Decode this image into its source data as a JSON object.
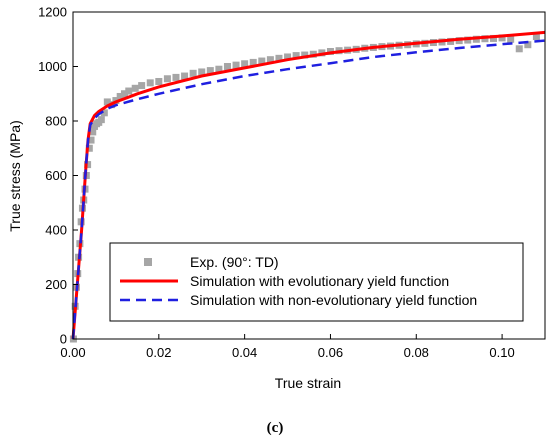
{
  "chart_data": {
    "type": "line",
    "xlabel": "True strain",
    "ylabel": "True stress (MPa)",
    "xlim": [
      0,
      0.11
    ],
    "ylim": [
      0,
      1200
    ],
    "x_ticks": [
      0.0,
      0.02,
      0.04,
      0.06,
      0.08,
      0.1
    ],
    "x_tick_labels": [
      "0.00",
      "0.02",
      "0.04",
      "0.06",
      "0.08",
      "0.10"
    ],
    "y_ticks": [
      0,
      200,
      400,
      600,
      800,
      1000,
      1200
    ],
    "y_tick_labels": [
      "0",
      "200",
      "400",
      "600",
      "800",
      "1000",
      "1200"
    ],
    "grid": false,
    "legend_position": "lower-right",
    "panel_label": "(c)",
    "series": [
      {
        "name": "Exp. (90°: TD)",
        "style": "scatter",
        "color": "#a6a6a6",
        "marker": "square",
        "x": [
          0.0001,
          0.0005,
          0.0008,
          0.0011,
          0.0013,
          0.0016,
          0.0019,
          0.0022,
          0.0025,
          0.0028,
          0.0031,
          0.0034,
          0.0038,
          0.0042,
          0.0046,
          0.005,
          0.0055,
          0.006,
          0.0066,
          0.0073,
          0.008,
          0.009,
          0.01,
          0.011,
          0.012,
          0.013,
          0.0145,
          0.016,
          0.018,
          0.02,
          0.022,
          0.024,
          0.026,
          0.028,
          0.03,
          0.032,
          0.034,
          0.036,
          0.038,
          0.04,
          0.042,
          0.044,
          0.046,
          0.048,
          0.05,
          0.052,
          0.054,
          0.056,
          0.058,
          0.06,
          0.062,
          0.064,
          0.066,
          0.068,
          0.07,
          0.072,
          0.074,
          0.076,
          0.078,
          0.08,
          0.082,
          0.084,
          0.086,
          0.088,
          0.09,
          0.092,
          0.094,
          0.096,
          0.098,
          0.1,
          0.102,
          0.104,
          0.106,
          0.108
        ],
        "y": [
          0,
          120,
          190,
          240,
          300,
          350,
          430,
          480,
          510,
          550,
          600,
          640,
          700,
          730,
          760,
          780,
          790,
          795,
          805,
          830,
          870,
          860,
          875,
          890,
          900,
          910,
          920,
          930,
          940,
          945,
          955,
          960,
          965,
          975,
          980,
          985,
          990,
          1000,
          1005,
          1010,
          1015,
          1020,
          1025,
          1030,
          1035,
          1040,
          1042,
          1045,
          1050,
          1055,
          1058,
          1060,
          1063,
          1067,
          1070,
          1073,
          1075,
          1078,
          1080,
          1083,
          1085,
          1088,
          1090,
          1092,
          1095,
          1097,
          1100,
          1102,
          1103,
          1105,
          1100,
          1065,
          1080,
          1110
        ]
      },
      {
        "name": "Simulation with evolutionary yield function",
        "style": "solid",
        "color": "#ff0000",
        "x": [
          0,
          0.001,
          0.002,
          0.003,
          0.0035,
          0.004,
          0.005,
          0.006,
          0.008,
          0.01,
          0.015,
          0.02,
          0.03,
          0.04,
          0.05,
          0.06,
          0.07,
          0.08,
          0.09,
          0.1,
          0.11
        ],
        "y": [
          0,
          200,
          400,
          630,
          730,
          790,
          820,
          835,
          855,
          870,
          900,
          925,
          965,
          995,
          1025,
          1050,
          1070,
          1085,
          1100,
          1112,
          1125
        ]
      },
      {
        "name": "Simulation with non-evolutionary yield function",
        "style": "dashed",
        "color": "#1f1fe0",
        "x": [
          0,
          0.001,
          0.002,
          0.003,
          0.0035,
          0.004,
          0.005,
          0.006,
          0.008,
          0.01,
          0.015,
          0.02,
          0.03,
          0.04,
          0.05,
          0.06,
          0.07,
          0.08,
          0.09,
          0.1,
          0.11
        ],
        "y": [
          0,
          200,
          400,
          630,
          730,
          785,
          810,
          825,
          845,
          858,
          880,
          900,
          935,
          965,
          990,
          1012,
          1035,
          1052,
          1068,
          1082,
          1095
        ]
      }
    ]
  }
}
